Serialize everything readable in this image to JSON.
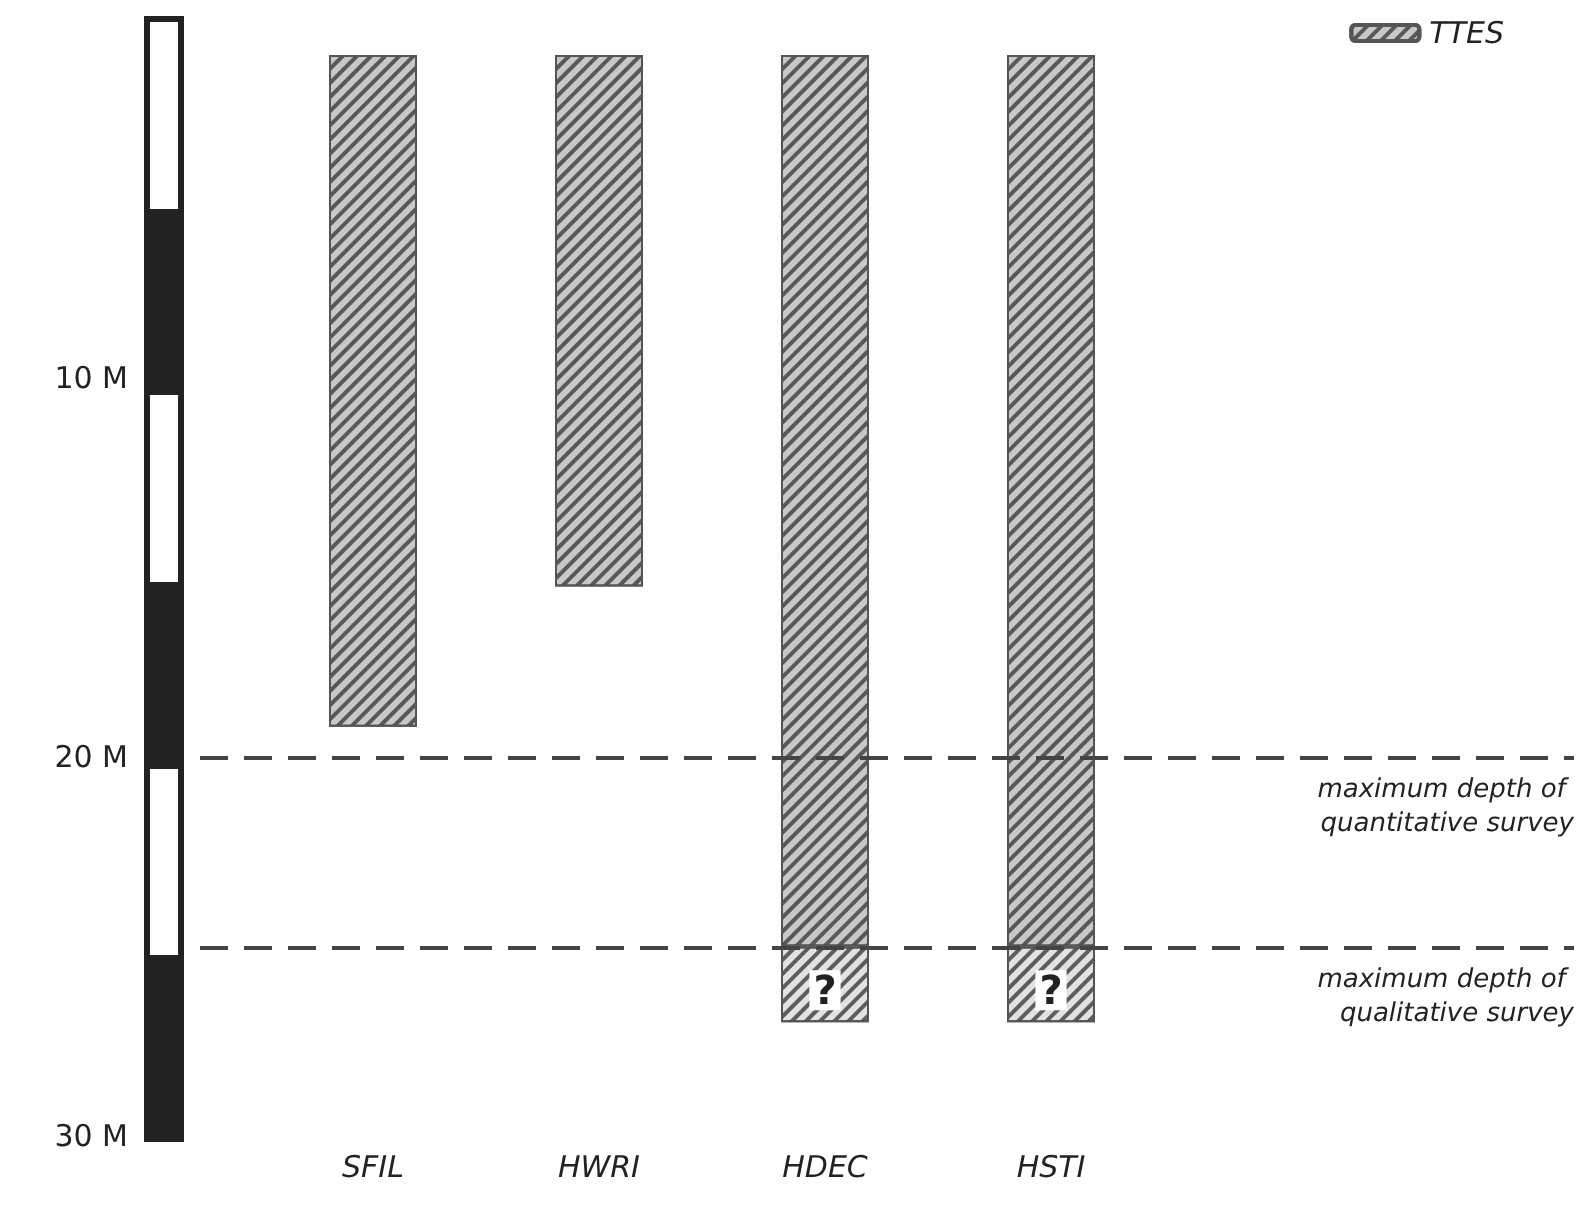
{
  "chart_data": {
    "type": "bar",
    "stacked": true,
    "categories": [
      "SFIL",
      "HWRI",
      "HDEC",
      "HSTI"
    ],
    "series": [
      {
        "name": "TTES",
        "color": "#c8c8c8",
        "values": [
          19.2,
          15.5,
          25,
          25
        ]
      },
      {
        "color": "#e2e2e2",
        "values": [
          null,
          null,
          2,
          2
        ],
        "value_labels": [
          null,
          null,
          "?",
          "?"
        ]
      }
    ],
    "ylim": [
      30,
      1.5
    ],
    "yticks": [
      {
        "value": 10,
        "label": "10 M"
      },
      {
        "value": 20,
        "label": "20 M"
      },
      {
        "value": 30,
        "label": "30 M"
      }
    ],
    "ref_lines": [
      {
        "axis": "y",
        "value": 20,
        "label": "maximum depth of quantitative survey",
        "color": "#444444",
        "line_style": "dashed"
      },
      {
        "axis": "y",
        "value": 25,
        "label": "maximum depth of qualitative survey",
        "color": "#444444",
        "line_style": "dashed"
      }
    ],
    "legend": "top right",
    "grid": false
  }
}
